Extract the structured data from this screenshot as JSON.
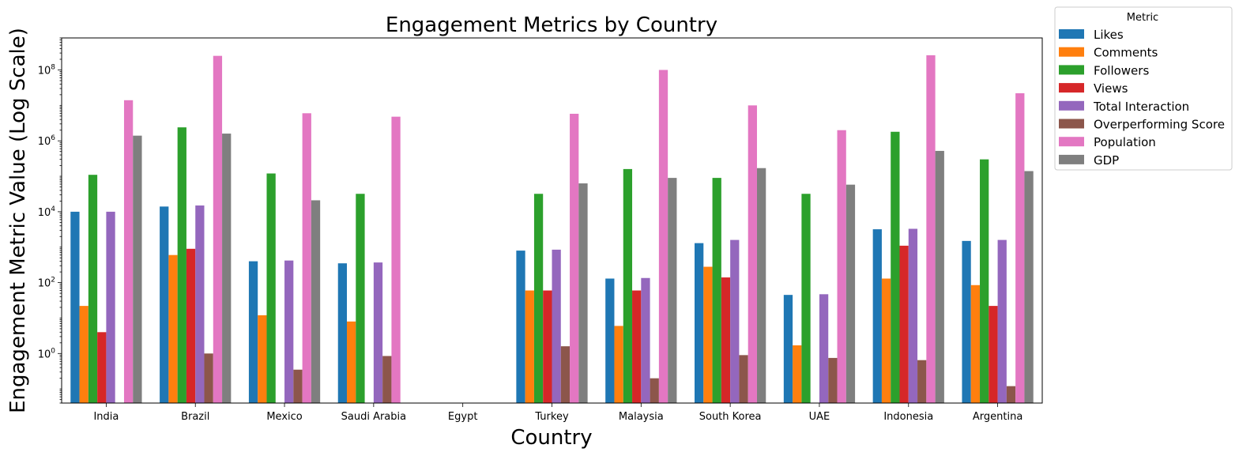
{
  "chart_data": {
    "type": "bar",
    "title": "Engagement Metrics by Country",
    "xlabel": "Country",
    "ylabel": "Engagement Metric Value (Log Scale)",
    "yscale": "log",
    "ylim": [
      0.04,
      800000000
    ],
    "yticks": [
      {
        "value": 1,
        "base": "10",
        "exp": "0"
      },
      {
        "value": 100,
        "base": "10",
        "exp": "2"
      },
      {
        "value": 10000,
        "base": "10",
        "exp": "4"
      },
      {
        "value": 1000000,
        "base": "10",
        "exp": "6"
      },
      {
        "value": 100000000,
        "base": "10",
        "exp": "8"
      }
    ],
    "grid": false,
    "legend": {
      "title": "Metric",
      "placement": "outside-top-right"
    },
    "categories": [
      "India",
      "Brazil",
      "Mexico",
      "Saudi Arabia",
      "Egypt",
      "Turkey",
      "Malaysia",
      "South Korea",
      "UAE",
      "Indonesia",
      "Argentina"
    ],
    "series": [
      {
        "name": "Likes",
        "color": "#1f77b4",
        "values": [
          10000,
          14000,
          400,
          350,
          null,
          800,
          130,
          1300,
          45,
          3200,
          1500
        ]
      },
      {
        "name": "Comments",
        "color": "#ff7f0e",
        "values": [
          22,
          600,
          12,
          8,
          null,
          60,
          6,
          280,
          1.7,
          130,
          85
        ]
      },
      {
        "name": "Followers",
        "color": "#2ca02c",
        "values": [
          110000,
          2400000,
          120000,
          32000,
          null,
          32000,
          160000,
          90000,
          32000,
          1800000,
          300000
        ]
      },
      {
        "name": "Views",
        "color": "#d62728",
        "values": [
          4,
          900,
          null,
          null,
          null,
          60,
          60,
          140,
          null,
          1100,
          22
        ]
      },
      {
        "name": "Total Interaction",
        "color": "#9467bd",
        "values": [
          10000,
          15000,
          420,
          370,
          null,
          850,
          135,
          1600,
          47,
          3300,
          1600
        ]
      },
      {
        "name": "Overperforming Score",
        "color": "#8c564b",
        "values": [
          null,
          1.0,
          0.35,
          0.85,
          null,
          1.6,
          0.2,
          0.9,
          0.75,
          0.65,
          0.12
        ]
      },
      {
        "name": "Population",
        "color": "#e377c2",
        "values": [
          14000000,
          250000000,
          6000000,
          4800000,
          null,
          5800000,
          100000000,
          10000000,
          2000000,
          260000000,
          22000000
        ]
      },
      {
        "name": "GDP",
        "color": "#7f7f7f",
        "values": [
          1400000,
          1600000,
          21000,
          null,
          null,
          63000,
          90000,
          170000,
          58000,
          520000,
          140000
        ]
      }
    ]
  }
}
